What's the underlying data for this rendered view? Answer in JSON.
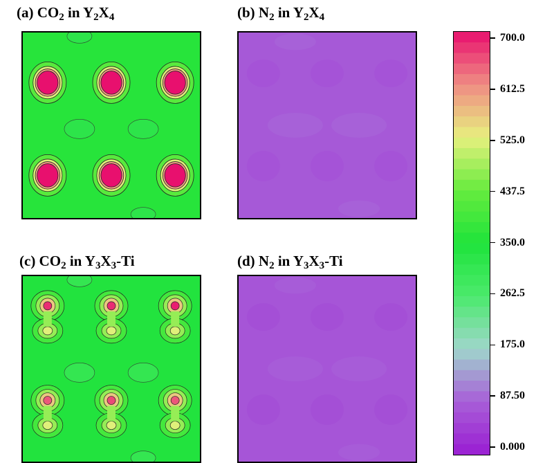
{
  "chart_data": [
    {
      "type": "heatmap",
      "panel_label": "(a)",
      "title_parts": {
        "pre": "(a) CO",
        "s1": "2",
        "mid": " in Y",
        "s2": "2",
        "mid2": "X",
        "s3": "4",
        "post": ""
      },
      "background_value": 360,
      "hotspots": [
        {
          "x": 0.14,
          "y": 0.27,
          "peak": 700,
          "shape": "round"
        },
        {
          "x": 0.5,
          "y": 0.27,
          "peak": 700,
          "shape": "round"
        },
        {
          "x": 0.86,
          "y": 0.27,
          "peak": 700,
          "shape": "round"
        },
        {
          "x": 0.14,
          "y": 0.77,
          "peak": 700,
          "shape": "round"
        },
        {
          "x": 0.5,
          "y": 0.77,
          "peak": 700,
          "shape": "round"
        },
        {
          "x": 0.86,
          "y": 0.77,
          "peak": 700,
          "shape": "round"
        }
      ]
    },
    {
      "type": "heatmap",
      "panel_label": "(b)",
      "title_parts": {
        "pre": "(b) N",
        "s1": "2",
        "mid": " in Y",
        "s2": "2",
        "mid2": "X",
        "s3": "4",
        "post": ""
      },
      "background_value": 80,
      "hotspots": []
    },
    {
      "type": "heatmap",
      "panel_label": "(c)",
      "title_parts": {
        "pre": "(c) CO",
        "s1": "2",
        "mid": " in Y",
        "s2": "3",
        "mid2": "X",
        "s3": "3",
        "post": "-Ti"
      },
      "background_value": 345,
      "hotspots": [
        {
          "x": 0.14,
          "y": 0.16,
          "peak": 680,
          "shape": "dumbbell"
        },
        {
          "x": 0.5,
          "y": 0.16,
          "peak": 680,
          "shape": "dumbbell"
        },
        {
          "x": 0.86,
          "y": 0.16,
          "peak": 690,
          "shape": "dumbbell"
        },
        {
          "x": 0.14,
          "y": 0.67,
          "peak": 650,
          "shape": "dumbbell"
        },
        {
          "x": 0.5,
          "y": 0.67,
          "peak": 660,
          "shape": "dumbbell"
        },
        {
          "x": 0.86,
          "y": 0.67,
          "peak": 650,
          "shape": "dumbbell"
        }
      ]
    },
    {
      "type": "heatmap",
      "panel_label": "(d)",
      "title_parts": {
        "pre": "(d) N",
        "s1": "2",
        "mid": " in Y",
        "s2": "3",
        "mid2": "X",
        "s3": "3",
        "post": "-Ti"
      },
      "background_value": 75,
      "hotspots": []
    }
  ],
  "colorbar": {
    "min": 0.0,
    "max": 700.0,
    "tick_labels": [
      "700.0",
      "612.5",
      "525.0",
      "437.5",
      "350.0",
      "262.5",
      "175.0",
      "87.50",
      "0.000"
    ],
    "tick_values": [
      700,
      612.5,
      525,
      437.5,
      350,
      262.5,
      175,
      87.5,
      0
    ],
    "color_stops": [
      {
        "value": 0,
        "color": "#9a1ed2"
      },
      {
        "value": 90,
        "color": "#a860d8"
      },
      {
        "value": 175,
        "color": "#9fd6cc"
      },
      {
        "value": 262.5,
        "color": "#4bea6c"
      },
      {
        "value": 350,
        "color": "#1fe33b"
      },
      {
        "value": 437.5,
        "color": "#66ec3e"
      },
      {
        "value": 525,
        "color": "#e7f07e"
      },
      {
        "value": 612.5,
        "color": "#ef8c83"
      },
      {
        "value": 700,
        "color": "#e8106e"
      }
    ]
  }
}
